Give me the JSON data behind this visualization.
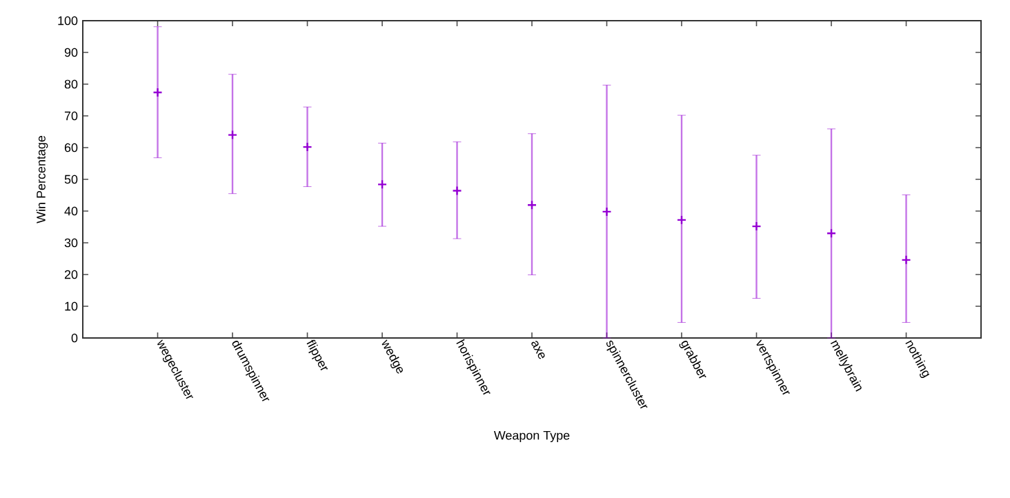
{
  "chart_data": {
    "type": "scatter",
    "xlabel": "Weapon Type",
    "ylabel": "Win Percentage",
    "categories": [
      "wegecluster",
      "drumspinner",
      "flipper",
      "wedge",
      "horispinner",
      "axe",
      "spinnercluster",
      "grabber",
      "vertspinner",
      "mellybrain",
      "nothing"
    ],
    "values": [
      77.4,
      64.0,
      60.2,
      48.4,
      46.4,
      41.9,
      39.8,
      37.2,
      35.2,
      33.0,
      24.6
    ],
    "errors": [
      [
        56.8,
        98.1
      ],
      [
        45.5,
        83.1
      ],
      [
        47.7,
        72.8
      ],
      [
        35.2,
        61.4
      ],
      [
        31.3,
        61.8
      ],
      [
        19.9,
        64.4
      ],
      [
        0,
        79.7
      ],
      [
        4.9,
        70.2
      ],
      [
        12.5,
        57.6
      ],
      [
        0,
        65.9
      ],
      [
        4.9,
        45.1
      ]
    ],
    "color": "#9400d3",
    "marker": "cross",
    "ylim": [
      0,
      100
    ],
    "yticks": [
      0,
      10,
      20,
      30,
      40,
      50,
      60,
      70,
      80,
      90,
      100
    ]
  }
}
